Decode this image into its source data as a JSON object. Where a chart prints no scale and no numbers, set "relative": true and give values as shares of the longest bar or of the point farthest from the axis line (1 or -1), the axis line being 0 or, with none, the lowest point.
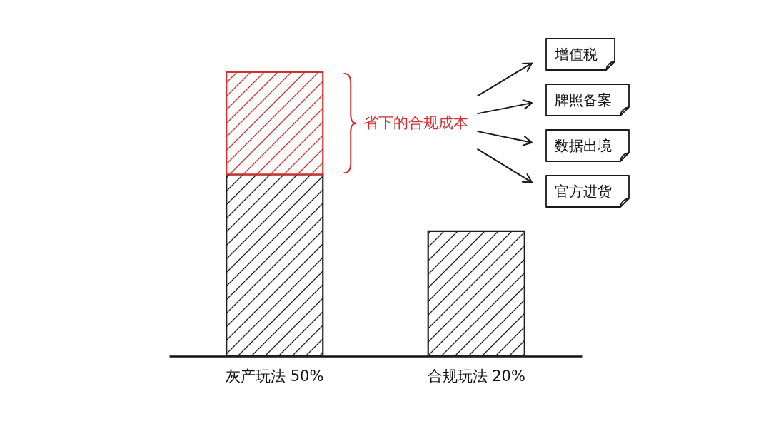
{
  "chart_data": {
    "type": "bar",
    "relative": true,
    "stacked": true,
    "categories": [
      "灰产玩法 50%",
      "合规玩法 20%"
    ],
    "series": [
      {
        "color": "#1e1e1e",
        "values": [
          0.64,
          0.44
        ]
      },
      {
        "name": "省下的合规成本",
        "color": "#d03030",
        "values": [
          0.36,
          null
        ]
      }
    ],
    "annotations": [
      "增值税",
      "牌照备案",
      "数据出境",
      "官方进货"
    ]
  }
}
